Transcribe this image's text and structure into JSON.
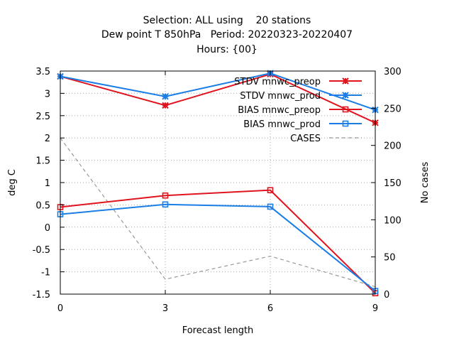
{
  "chart_data": {
    "type": "line",
    "title_lines": [
      "Selection: ALL using    20 stations",
      "Dew point T 850hPa   Period: 20220323-20220407",
      "Hours: {00}"
    ],
    "xlabel": "Forecast length",
    "ylabel": "deg C",
    "y2label": "No cases",
    "x": [
      0,
      3,
      6,
      9
    ],
    "xlim": [
      0,
      9
    ],
    "ylim": [
      -1.5,
      3.5
    ],
    "y2lim": [
      0,
      300
    ],
    "xticks": [
      "0",
      "3",
      "6",
      "9"
    ],
    "yticks": [
      "-1.5",
      "-1",
      "-0.5",
      "0",
      "0.5",
      "1",
      "1.5",
      "2",
      "2.5",
      "3",
      "3.5"
    ],
    "y2ticks": [
      "0",
      "50",
      "100",
      "150",
      "200",
      "250",
      "300"
    ],
    "grid": true,
    "legend_position": "top-right",
    "series": [
      {
        "name": "STDV mnwc_preop",
        "axis": "y1",
        "marker": "star",
        "color": "#e0141e",
        "dash": "solid",
        "values": [
          3.38,
          2.73,
          3.43,
          2.34
        ]
      },
      {
        "name": "STDV mnwc_prod",
        "axis": "y1",
        "marker": "star",
        "color": "#1a7ee6",
        "dash": "solid",
        "values": [
          3.38,
          2.93,
          3.45,
          2.63
        ]
      },
      {
        "name": "BIAS mnwc_preop",
        "axis": "y1",
        "marker": "square",
        "color": "#e0141e",
        "dash": "solid",
        "values": [
          0.45,
          0.71,
          0.83,
          -1.48
        ]
      },
      {
        "name": "BIAS mnwc_prod",
        "axis": "y1",
        "marker": "square",
        "color": "#1a7ee6",
        "dash": "solid",
        "values": [
          0.29,
          0.51,
          0.46,
          -1.43
        ]
      },
      {
        "name": "CASES",
        "axis": "y2",
        "marker": "none",
        "color": "#999999",
        "dash": "dashed",
        "values": [
          210,
          20,
          51,
          10
        ]
      }
    ]
  }
}
